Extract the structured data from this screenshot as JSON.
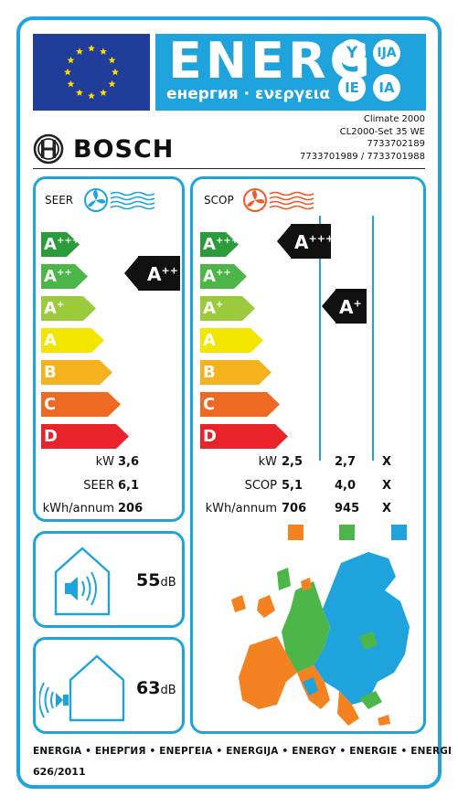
{
  "header": {
    "energy_word": "ENERG",
    "energy_subtitle": "енергия · ενεργεια",
    "language_circles": [
      "Y",
      "IJA",
      "IE",
      "IA"
    ],
    "eu_flag_icon": "eu-flag-icon",
    "brand": "BOSCH"
  },
  "model": {
    "line1": "Climate 2000",
    "line2": "CL2000-Set 35 WE",
    "line3": "7733702189",
    "line4": "7733701989 / 7733701988"
  },
  "seer_panel": {
    "title": "SEER",
    "icon": "fan-cooling-icon",
    "classes": [
      "A",
      "A",
      "A",
      "A",
      "B",
      "C",
      "D"
    ],
    "class_suffixes": [
      "+++",
      "++",
      "+",
      "",
      "",
      "",
      ""
    ],
    "class_colors": [
      "#2a9d3a",
      "#4cb748",
      "#9bcb3c",
      "#f2e600",
      "#f6b11e",
      "#ee6a23",
      "#e8232a"
    ],
    "indicator": {
      "base": "A",
      "suffix": "++"
    },
    "rows": [
      {
        "label": "kW",
        "value": "3,6"
      },
      {
        "label": "SEER",
        "value": "6,1"
      },
      {
        "label": "kWh/annum",
        "value": "206"
      }
    ]
  },
  "scop_panel": {
    "title": "SCOP",
    "icon": "fan-heating-icon",
    "indicator_average": {
      "base": "A",
      "suffix": "+++"
    },
    "indicator_colder": {
      "base": "A",
      "suffix": "+"
    },
    "rows": [
      {
        "label": "kW",
        "values": [
          "2,5",
          "2,7",
          "X"
        ]
      },
      {
        "label": "SCOP",
        "values": [
          "5,1",
          "4,0",
          "X"
        ]
      },
      {
        "label": "kWh/annum",
        "values": [
          "706",
          "945",
          "X"
        ]
      }
    ],
    "climate_colors": [
      "#f58220",
      "#4cb748",
      "#1fa3dc"
    ],
    "map_icon": "europe-climate-map-icon"
  },
  "noise": {
    "indoor": {
      "value": "55",
      "unit": "dB",
      "icon": "indoor-speaker-icon"
    },
    "outdoor": {
      "value": "63",
      "unit": "dB",
      "icon": "outdoor-speaker-icon"
    }
  },
  "footer": {
    "languages": "ENERGIA • ЕНЕРГИЯ • ΕΝΕΡΓΕΙΑ • ENERGIJA • ENERGY • ENERGIE • ENERGI",
    "regulation": "626/2011"
  }
}
